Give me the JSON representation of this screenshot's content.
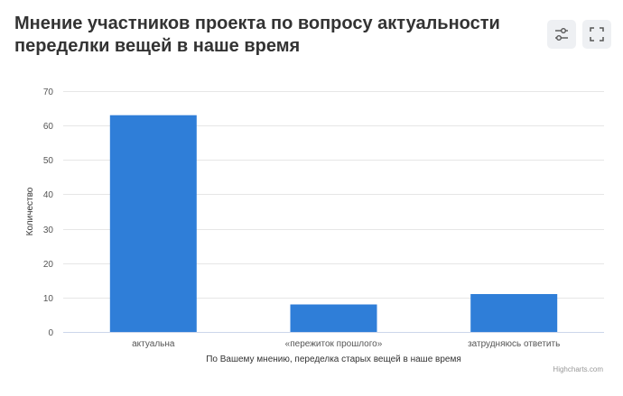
{
  "title": "Мнение участников проекта по вопросу актуальности переделки вещей в наше время",
  "toolbar": {
    "settings_icon": "sliders-icon",
    "fullscreen_icon": "fullscreen-icon"
  },
  "chart_data": {
    "type": "bar",
    "title": "Мнение участников проекта по вопросу актуальности переделки вещей в наше время",
    "categories": [
      "актуальна",
      "«пережиток прошлого»",
      "затрудняюсь ответить"
    ],
    "series": [
      {
        "values": [
          63,
          8,
          11
        ]
      }
    ],
    "xlabel": "По Вашему мнению, переделка старых вещей в наше время",
    "ylabel": "Количество",
    "ylim": [
      0,
      70
    ],
    "yticks": [
      0,
      10,
      20,
      30,
      40,
      50,
      60,
      70
    ],
    "grid": true,
    "legend": false,
    "bar_color": "#2f7ed8"
  },
  "credits": "Highcharts.com",
  "colors": {
    "title": "#333333",
    "bar": "#2f7ed8",
    "grid": "#e6e6e6",
    "axis_line": "#ccd6eb"
  }
}
